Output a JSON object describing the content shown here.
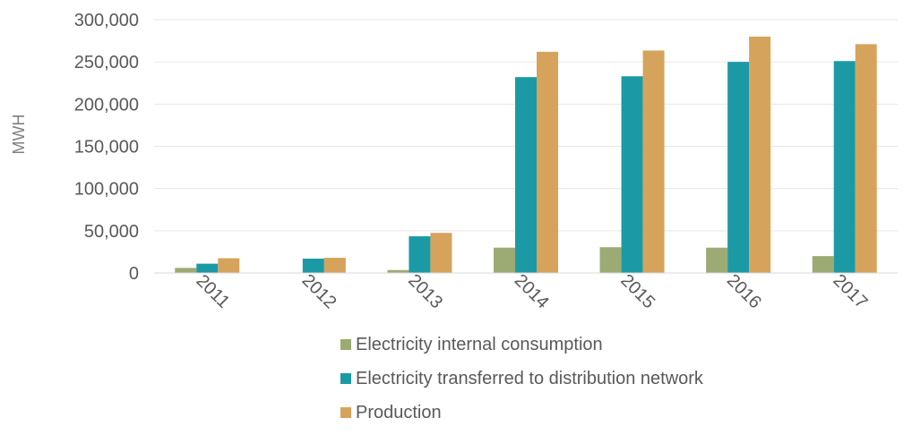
{
  "chart_data": {
    "type": "bar",
    "categories": [
      "2011",
      "2012",
      "2013",
      "2014",
      "2015",
      "2016",
      "2017"
    ],
    "series": [
      {
        "name": "Electricity internal consumption",
        "color": "#9caa73",
        "values": [
          6000,
          0,
          3500,
          30000,
          30500,
          30000,
          20000
        ]
      },
      {
        "name": "Electricity transferred to distribution network",
        "color": "#1b9aa6",
        "values": [
          11000,
          17000,
          43500,
          232000,
          233000,
          250000,
          251000
        ]
      },
      {
        "name": "Production",
        "color": "#d6a35c",
        "values": [
          17500,
          18000,
          47500,
          262000,
          263500,
          280000,
          271000
        ]
      }
    ],
    "ylabel": "MWH",
    "xlabel": "",
    "ylim": [
      0,
      300000
    ],
    "yticks": [
      "0",
      "50,000",
      "100,000",
      "150,000",
      "200,000",
      "250,000",
      "300,000"
    ],
    "grid": "on",
    "legend_position": "bottom"
  }
}
